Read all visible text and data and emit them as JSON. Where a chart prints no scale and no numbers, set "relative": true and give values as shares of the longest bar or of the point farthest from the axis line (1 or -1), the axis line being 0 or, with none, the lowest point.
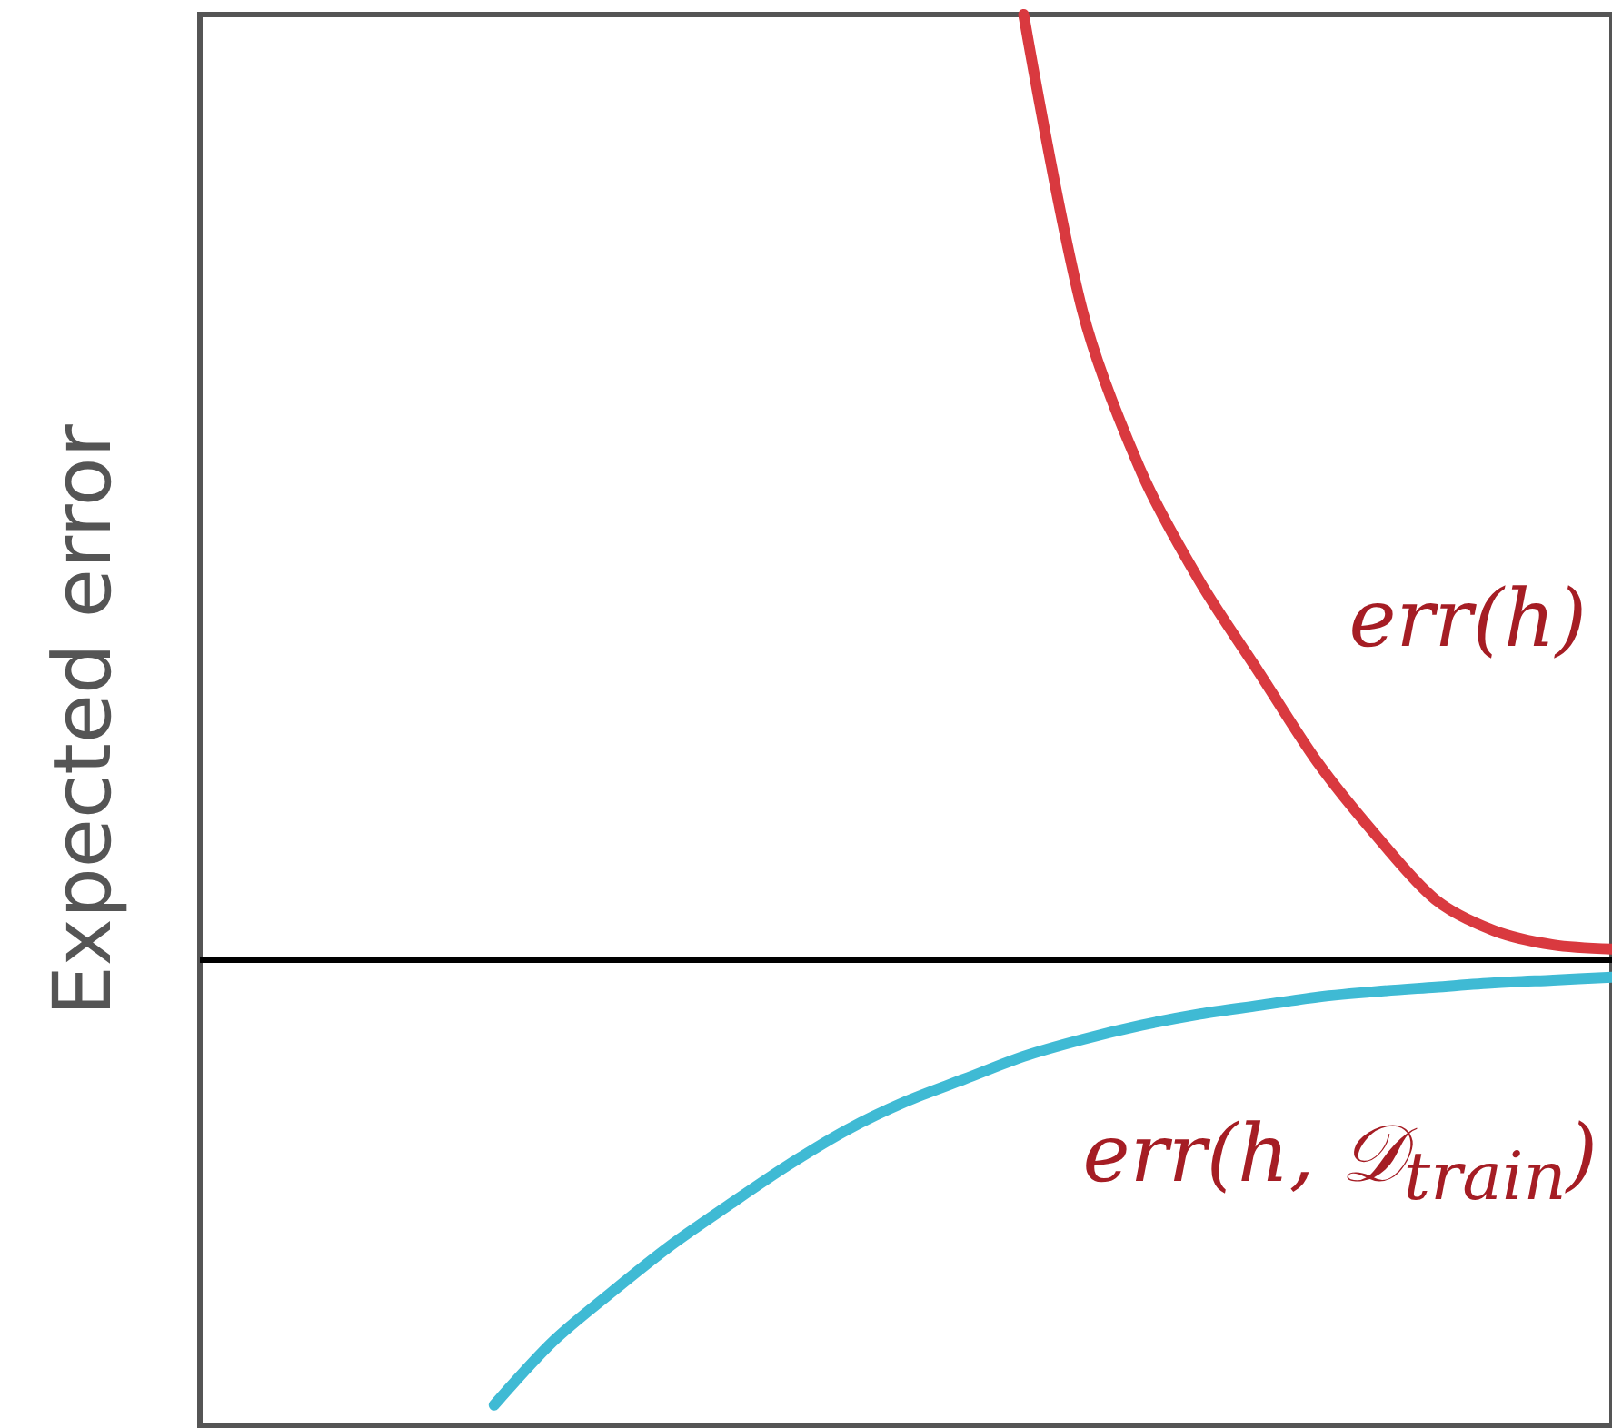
{
  "chart_data": {
    "type": "line",
    "relative": true,
    "ylabel": "Expected error",
    "marker": "none",
    "line_style": "solid",
    "categories": [
      null,
      null,
      null,
      null,
      null,
      null,
      null,
      null,
      null,
      null,
      null,
      null,
      null,
      null,
      null,
      null,
      null,
      null,
      null,
      null,
      null,
      null,
      null,
      null,
      null
    ],
    "series": [
      {
        "name": "err(h)",
        "color": "#d9393f",
        "values": [
          null,
          null,
          null,
          null,
          null,
          null,
          null,
          null,
          null,
          null,
          null,
          null,
          null,
          null,
          1.0,
          0.79,
          0.676,
          0.598,
          0.534,
          0.47,
          0.418,
          0.373,
          0.351,
          0.341,
          0.338
        ]
      },
      {
        "name": "err(h, 𝒟$_{train}$)",
        "color": "#3fbad4",
        "values": [
          null,
          null,
          null,
          null,
          null,
          0.015,
          0.06,
          0.095,
          0.128,
          0.157,
          0.185,
          0.21,
          0.23,
          0.246,
          0.262,
          0.274,
          0.284,
          0.292,
          0.298,
          0.304,
          0.308,
          0.311,
          0.314,
          0.316,
          0.318
        ]
      }
    ],
    "ref_lines": [
      {
        "axis": "y",
        "value": 0.328,
        "color": "#000000"
      }
    ]
  }
}
